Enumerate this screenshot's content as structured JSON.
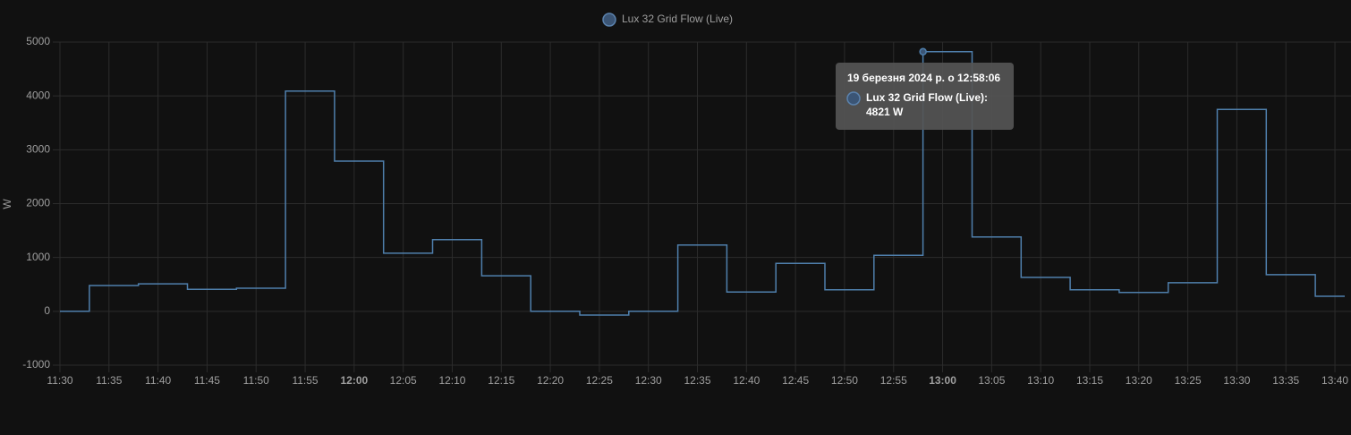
{
  "chart_data": {
    "type": "step-line",
    "legend": "Lux 32 Grid Flow (Live)",
    "y_label": "W",
    "xlim": [
      "11:30",
      "13:41"
    ],
    "xticks": [
      "11:30",
      "11:35",
      "11:40",
      "11:45",
      "11:50",
      "11:55",
      "12:00",
      "12:05",
      "12:10",
      "12:15",
      "12:20",
      "12:25",
      "12:30",
      "12:35",
      "12:40",
      "12:45",
      "12:50",
      "12:55",
      "13:00",
      "13:05",
      "13:10",
      "13:15",
      "13:20",
      "13:25",
      "13:30",
      "13:35",
      "13:40"
    ],
    "ylim": [
      -1000,
      5000
    ],
    "yticks": [
      -1000,
      0,
      1000,
      2000,
      3000,
      4000,
      5000
    ],
    "grid": true,
    "series": [
      {
        "name": "Lux 32 Grid Flow (Live)",
        "color": "#4f7fac",
        "x": [
          "11:30",
          "11:33",
          "11:38",
          "11:43",
          "11:48",
          "11:53",
          "11:58",
          "12:03",
          "12:08",
          "12:13",
          "12:18",
          "12:23",
          "12:28",
          "12:33",
          "12:38",
          "12:43",
          "12:48",
          "12:53",
          "12:58",
          "13:03",
          "13:08",
          "13:13",
          "13:18",
          "13:23",
          "13:28",
          "13:33",
          "13:38"
        ],
        "values": [
          0,
          480,
          510,
          410,
          430,
          4090,
          2790,
          1080,
          1330,
          660,
          0,
          -70,
          0,
          1230,
          360,
          890,
          400,
          1040,
          4821,
          1380,
          630,
          400,
          350,
          530,
          3750,
          680,
          280
        ]
      }
    ],
    "tooltip": {
      "title": "19 березня 2024 р. о 12:58:06",
      "label": "Lux 32 Grid Flow (Live):",
      "text": "4821 W"
    }
  }
}
